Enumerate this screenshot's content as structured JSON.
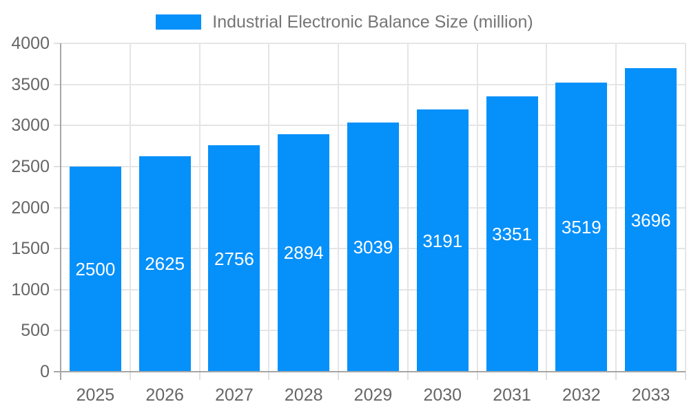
{
  "chart_data": {
    "type": "bar",
    "title": "Industrial Electronic Balance Size (million)",
    "categories": [
      "2025",
      "2026",
      "2027",
      "2028",
      "2029",
      "2030",
      "2031",
      "2032",
      "2033"
    ],
    "values": [
      2500,
      2625,
      2756,
      2894,
      3039,
      3191,
      3351,
      3519,
      3696
    ],
    "xlabel": "",
    "ylabel": "",
    "ylim": [
      0,
      4000
    ],
    "yticks": [
      0,
      500,
      1000,
      1500,
      2000,
      2500,
      3000,
      3500,
      4000
    ],
    "grid": "both",
    "legend_position": "top",
    "value_labels": "inside-center",
    "colors": {
      "bar": "#0690fa",
      "grid": "#e5e5e5",
      "axis": "#a6a6a6",
      "tick_label": "#666666",
      "legend_text": "#757575",
      "value_label": "#ffffff",
      "background": "#ffffff"
    }
  }
}
